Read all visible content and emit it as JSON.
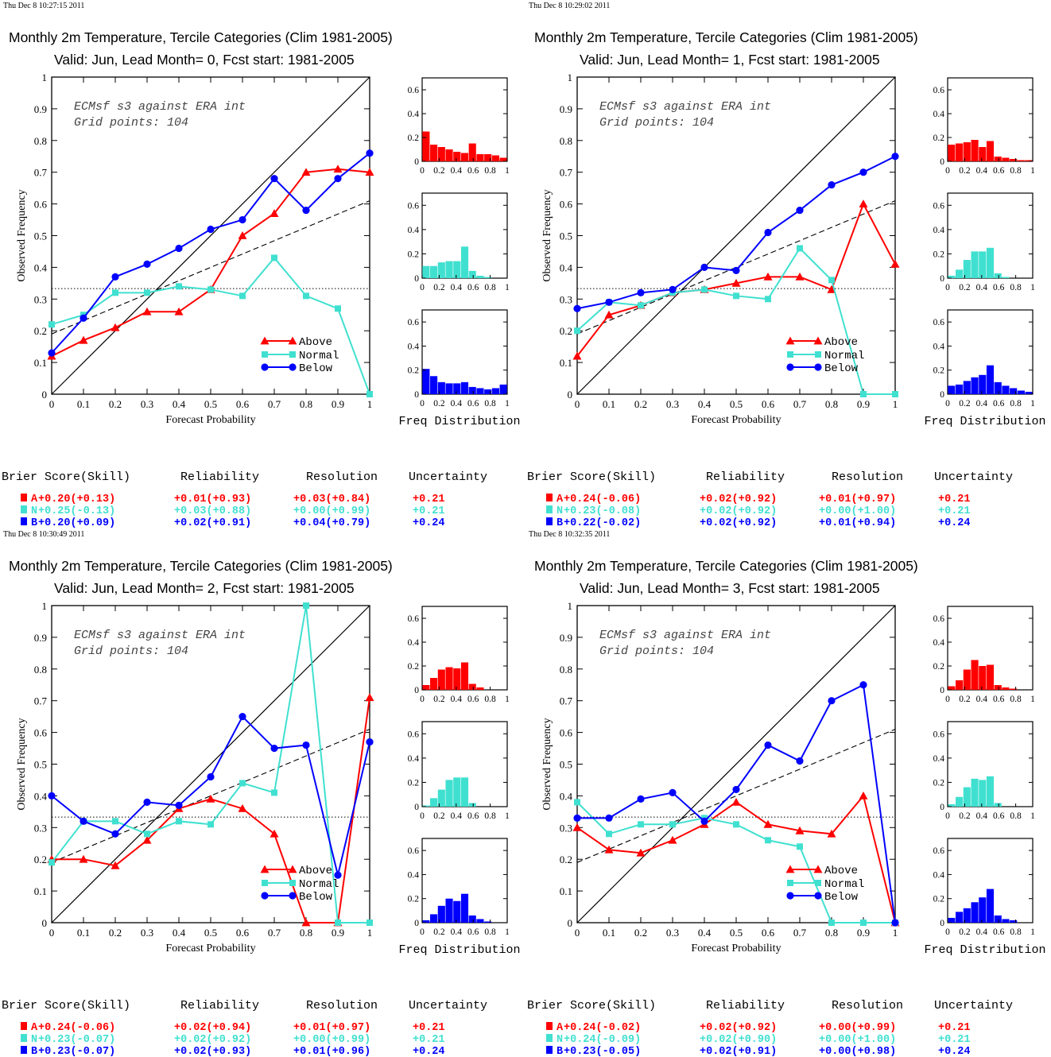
{
  "colors": {
    "above": "#ff0000",
    "normal": "#40e0d0",
    "below": "#0000ff",
    "axis": "#000000"
  },
  "common": {
    "xlabel": "Forecast Probability",
    "ylabel": "Observed Frequency",
    "annotation_line1": "ECMsf s3 against ERA int",
    "annotation_line2": "Grid points:  104",
    "hist_label": "Freq Distribution",
    "legend": [
      "Above",
      "Normal",
      "Below"
    ],
    "score_headers": [
      "Brier Score(Skill)",
      "Reliability",
      "Resolution",
      "Uncertainty"
    ],
    "score_letters": [
      "A",
      "N",
      "B"
    ],
    "x_ticks": [
      "0",
      "0.1",
      "0.2",
      "0.3",
      "0.4",
      "0.5",
      "0.6",
      "0.7",
      "0.8",
      "0.9",
      "1"
    ],
    "y_ticks": [
      "0",
      "0.1",
      "0.2",
      "0.3",
      "0.4",
      "0.5",
      "0.6",
      "0.7",
      "0.8",
      "0.9",
      "1"
    ],
    "hist_y_ticks": [
      "0",
      "0.2",
      "0.4",
      "0.6"
    ],
    "hist_x_ticks": [
      "0",
      "0.2",
      "0.4",
      "0.6",
      "0.8",
      "1"
    ]
  },
  "panels": [
    {
      "timestamp": "Thu Dec  8 10:27:15 2011",
      "title": "Monthly 2m Temperature, Tercile Categories (Clim 1981-2005)",
      "subtitle": "Valid: Jun, Lead Month= 0, Fcst start: 1981-2005",
      "scores": [
        [
          "+0.20(+0.13)",
          "+0.01(+0.93)",
          "+0.03(+0.84)",
          "+0.21"
        ],
        [
          "+0.25(-0.13)",
          "+0.03(+0.88)",
          "+0.00(+0.99)",
          "+0.21"
        ],
        [
          "+0.20(+0.09)",
          "+0.02(+0.91)",
          "+0.04(+0.79)",
          "+0.24"
        ]
      ]
    },
    {
      "timestamp": "Thu Dec  8 10:29:02 2011",
      "title": "Monthly 2m Temperature, Tercile Categories (Clim 1981-2005)",
      "subtitle": "Valid: Jun, Lead Month= 1, Fcst start: 1981-2005",
      "scores": [
        [
          "+0.24(-0.06)",
          "+0.02(+0.92)",
          "+0.01(+0.97)",
          "+0.21"
        ],
        [
          "+0.23(-0.08)",
          "+0.02(+0.92)",
          "+0.00(+1.00)",
          "+0.21"
        ],
        [
          "+0.22(-0.02)",
          "+0.02(+0.92)",
          "+0.01(+0.94)",
          "+0.24"
        ]
      ]
    },
    {
      "timestamp": "Thu Dec  8 10:30:49 2011",
      "title": "Monthly 2m Temperature, Tercile Categories (Clim 1981-2005)",
      "subtitle": "Valid: Jun, Lead Month= 2, Fcst start: 1981-2005",
      "scores": [
        [
          "+0.24(-0.06)",
          "+0.02(+0.94)",
          "+0.01(+0.97)",
          "+0.21"
        ],
        [
          "+0.23(-0.07)",
          "+0.02(+0.92)",
          "+0.00(+0.99)",
          "+0.21"
        ],
        [
          "+0.23(-0.07)",
          "+0.02(+0.93)",
          "+0.01(+0.96)",
          "+0.24"
        ]
      ]
    },
    {
      "timestamp": "Thu Dec  8 10:32:35 2011",
      "title": "Monthly 2m Temperature, Tercile Categories (Clim 1981-2005)",
      "subtitle": "Valid: Jun, Lead Month= 3, Fcst start: 1981-2005",
      "scores": [
        [
          "+0.24(-0.02)",
          "+0.02(+0.92)",
          "+0.00(+0.99)",
          "+0.21"
        ],
        [
          "+0.24(-0.09)",
          "+0.02(+0.90)",
          "+0.00(+1.00)",
          "+0.21"
        ],
        [
          "+0.23(-0.05)",
          "+0.02(+0.91)",
          "+0.00(+0.98)",
          "+0.24"
        ]
      ]
    }
  ],
  "chart_data": [
    {
      "type": "line",
      "title": "Monthly 2m Temperature, Tercile Categories (Clim 1981-2005)",
      "subtitle": "Valid: Jun, Lead Month= 0, Fcst start: 1981-2005",
      "xlabel": "Forecast Probability",
      "ylabel": "Observed Frequency",
      "xlim": [
        0,
        1
      ],
      "ylim": [
        0,
        1
      ],
      "legend_position": "bottom-right",
      "reference_lines": {
        "climatology": 0.333,
        "no_skill": [
          0.19,
          0.61
        ]
      },
      "x": [
        0,
        0.1,
        0.2,
        0.3,
        0.4,
        0.5,
        0.6,
        0.7,
        0.8,
        0.9,
        1.0
      ],
      "series": [
        {
          "name": "Above",
          "values": [
            0.12,
            0.17,
            0.21,
            0.26,
            0.26,
            0.33,
            0.5,
            0.57,
            0.7,
            0.71,
            0.7
          ]
        },
        {
          "name": "Normal",
          "values": [
            0.22,
            0.25,
            0.32,
            0.32,
            0.34,
            0.33,
            0.31,
            0.43,
            0.31,
            0.27,
            0.0
          ]
        },
        {
          "name": "Below",
          "values": [
            0.13,
            0.24,
            0.37,
            0.41,
            0.46,
            0.52,
            0.55,
            0.68,
            0.58,
            0.68,
            0.76
          ]
        }
      ],
      "histograms": {
        "xlabel": "Freq Distribution",
        "ylim": [
          0,
          0.7
        ],
        "bins": [
          0,
          0.1,
          0.2,
          0.3,
          0.4,
          0.5,
          0.6,
          0.7,
          0.8,
          0.9,
          1.0
        ],
        "above": [
          0.25,
          0.14,
          0.12,
          0.1,
          0.08,
          0.07,
          0.15,
          0.06,
          0.06,
          0.05,
          0.03
        ],
        "normal": [
          0.1,
          0.1,
          0.13,
          0.14,
          0.14,
          0.26,
          0.06,
          0.02,
          0.01,
          0,
          0
        ],
        "below": [
          0.21,
          0.15,
          0.1,
          0.09,
          0.09,
          0.1,
          0.06,
          0.05,
          0.04,
          0.05,
          0.08
        ]
      }
    },
    {
      "type": "line",
      "title": "Monthly 2m Temperature, Tercile Categories (Clim 1981-2005)",
      "subtitle": "Valid: Jun, Lead Month= 1, Fcst start: 1981-2005",
      "xlabel": "Forecast Probability",
      "ylabel": "Observed Frequency",
      "xlim": [
        0,
        1
      ],
      "ylim": [
        0,
        1
      ],
      "legend_position": "bottom-right",
      "reference_lines": {
        "climatology": 0.333,
        "no_skill": [
          0.19,
          0.61
        ]
      },
      "x": [
        0,
        0.1,
        0.2,
        0.3,
        0.4,
        0.5,
        0.6,
        0.7,
        0.8,
        0.9,
        1.0
      ],
      "series": [
        {
          "name": "Above",
          "values": [
            0.12,
            0.25,
            0.28,
            0.32,
            0.33,
            0.35,
            0.37,
            0.37,
            0.33,
            0.6,
            0.41
          ]
        },
        {
          "name": "Normal",
          "values": [
            0.2,
            0.29,
            0.28,
            0.32,
            0.33,
            0.31,
            0.3,
            0.46,
            0.36,
            0.0,
            0.0
          ]
        },
        {
          "name": "Below",
          "values": [
            0.27,
            0.29,
            0.32,
            0.33,
            0.4,
            0.39,
            0.51,
            0.58,
            0.66,
            0.7,
            0.75
          ]
        }
      ],
      "histograms": {
        "xlabel": "Freq Distribution",
        "ylim": [
          0,
          0.7
        ],
        "bins": [
          0,
          0.1,
          0.2,
          0.3,
          0.4,
          0.5,
          0.6,
          0.7,
          0.8,
          0.9,
          1.0
        ],
        "above": [
          0.14,
          0.15,
          0.16,
          0.18,
          0.12,
          0.17,
          0.04,
          0.03,
          0.02,
          0.01,
          0.01
        ],
        "normal": [
          0.02,
          0.07,
          0.15,
          0.22,
          0.22,
          0.25,
          0.04,
          0.01,
          0,
          0,
          0
        ],
        "below": [
          0.07,
          0.08,
          0.11,
          0.14,
          0.16,
          0.24,
          0.1,
          0.07,
          0.05,
          0.03,
          0.02
        ]
      }
    },
    {
      "type": "line",
      "title": "Monthly 2m Temperature, Tercile Categories (Clim 1981-2005)",
      "subtitle": "Valid: Jun, Lead Month= 2, Fcst start: 1981-2005",
      "xlabel": "Forecast Probability",
      "ylabel": "Observed Frequency",
      "xlim": [
        0,
        1
      ],
      "ylim": [
        0,
        1
      ],
      "legend_position": "bottom-right",
      "reference_lines": {
        "climatology": 0.333,
        "no_skill": [
          0.19,
          0.61
        ]
      },
      "x": [
        0,
        0.1,
        0.2,
        0.3,
        0.4,
        0.5,
        0.6,
        0.7,
        0.8,
        0.9,
        1.0
      ],
      "series": [
        {
          "name": "Above",
          "values": [
            0.2,
            0.2,
            0.18,
            0.26,
            0.36,
            0.39,
            0.36,
            0.28,
            0.0,
            0.0,
            0.71
          ]
        },
        {
          "name": "Normal",
          "values": [
            0.19,
            0.32,
            0.32,
            0.28,
            0.32,
            0.31,
            0.44,
            0.41,
            1.0,
            0.0,
            0.0
          ]
        },
        {
          "name": "Below",
          "values": [
            0.4,
            0.32,
            0.28,
            0.38,
            0.37,
            0.46,
            0.65,
            0.55,
            0.56,
            0.15,
            0.57
          ]
        }
      ],
      "histograms": {
        "xlabel": "Freq Distribution",
        "ylim": [
          0,
          0.7
        ],
        "bins": [
          0,
          0.1,
          0.2,
          0.3,
          0.4,
          0.5,
          0.6,
          0.7,
          0.8,
          0.9,
          1.0
        ],
        "above": [
          0.04,
          0.1,
          0.17,
          0.19,
          0.18,
          0.23,
          0.05,
          0.02,
          0,
          0,
          0
        ],
        "normal": [
          0.01,
          0.07,
          0.14,
          0.22,
          0.24,
          0.24,
          0.03,
          0,
          0,
          0,
          0
        ],
        "below": [
          0.02,
          0.07,
          0.14,
          0.2,
          0.18,
          0.24,
          0.06,
          0.03,
          0.01,
          0,
          0
        ]
      }
    },
    {
      "type": "line",
      "title": "Monthly 2m Temperature, Tercile Categories (Clim 1981-2005)",
      "subtitle": "Valid: Jun, Lead Month= 3, Fcst start: 1981-2005",
      "xlabel": "Forecast Probability",
      "ylabel": "Observed Frequency",
      "xlim": [
        0,
        1
      ],
      "ylim": [
        0,
        1
      ],
      "legend_position": "bottom-right",
      "reference_lines": {
        "climatology": 0.333,
        "no_skill": [
          0.19,
          0.61
        ]
      },
      "x": [
        0,
        0.1,
        0.2,
        0.3,
        0.4,
        0.5,
        0.6,
        0.7,
        0.8,
        0.9,
        1.0
      ],
      "series": [
        {
          "name": "Above",
          "values": [
            0.3,
            0.23,
            0.22,
            0.26,
            0.31,
            0.38,
            0.31,
            0.29,
            0.28,
            0.4,
            0.0
          ]
        },
        {
          "name": "Normal",
          "values": [
            0.38,
            0.28,
            0.31,
            0.31,
            0.33,
            0.31,
            0.26,
            0.24,
            0.0,
            0.0,
            0.0
          ]
        },
        {
          "name": "Below",
          "values": [
            0.33,
            0.33,
            0.39,
            0.41,
            0.32,
            0.42,
            0.56,
            0.51,
            0.7,
            0.75,
            0.0
          ]
        }
      ],
      "histograms": {
        "xlabel": "Freq Distribution",
        "ylim": [
          0,
          0.7
        ],
        "bins": [
          0,
          0.1,
          0.2,
          0.3,
          0.4,
          0.5,
          0.6,
          0.7,
          0.8,
          0.9,
          1.0
        ],
        "above": [
          0.03,
          0.08,
          0.17,
          0.25,
          0.2,
          0.21,
          0.04,
          0.02,
          0.01,
          0,
          0
        ],
        "normal": [
          0.02,
          0.08,
          0.16,
          0.23,
          0.22,
          0.25,
          0.03,
          0,
          0,
          0,
          0
        ],
        "below": [
          0.04,
          0.09,
          0.12,
          0.17,
          0.21,
          0.28,
          0.06,
          0.03,
          0.02,
          0,
          0
        ]
      }
    }
  ]
}
